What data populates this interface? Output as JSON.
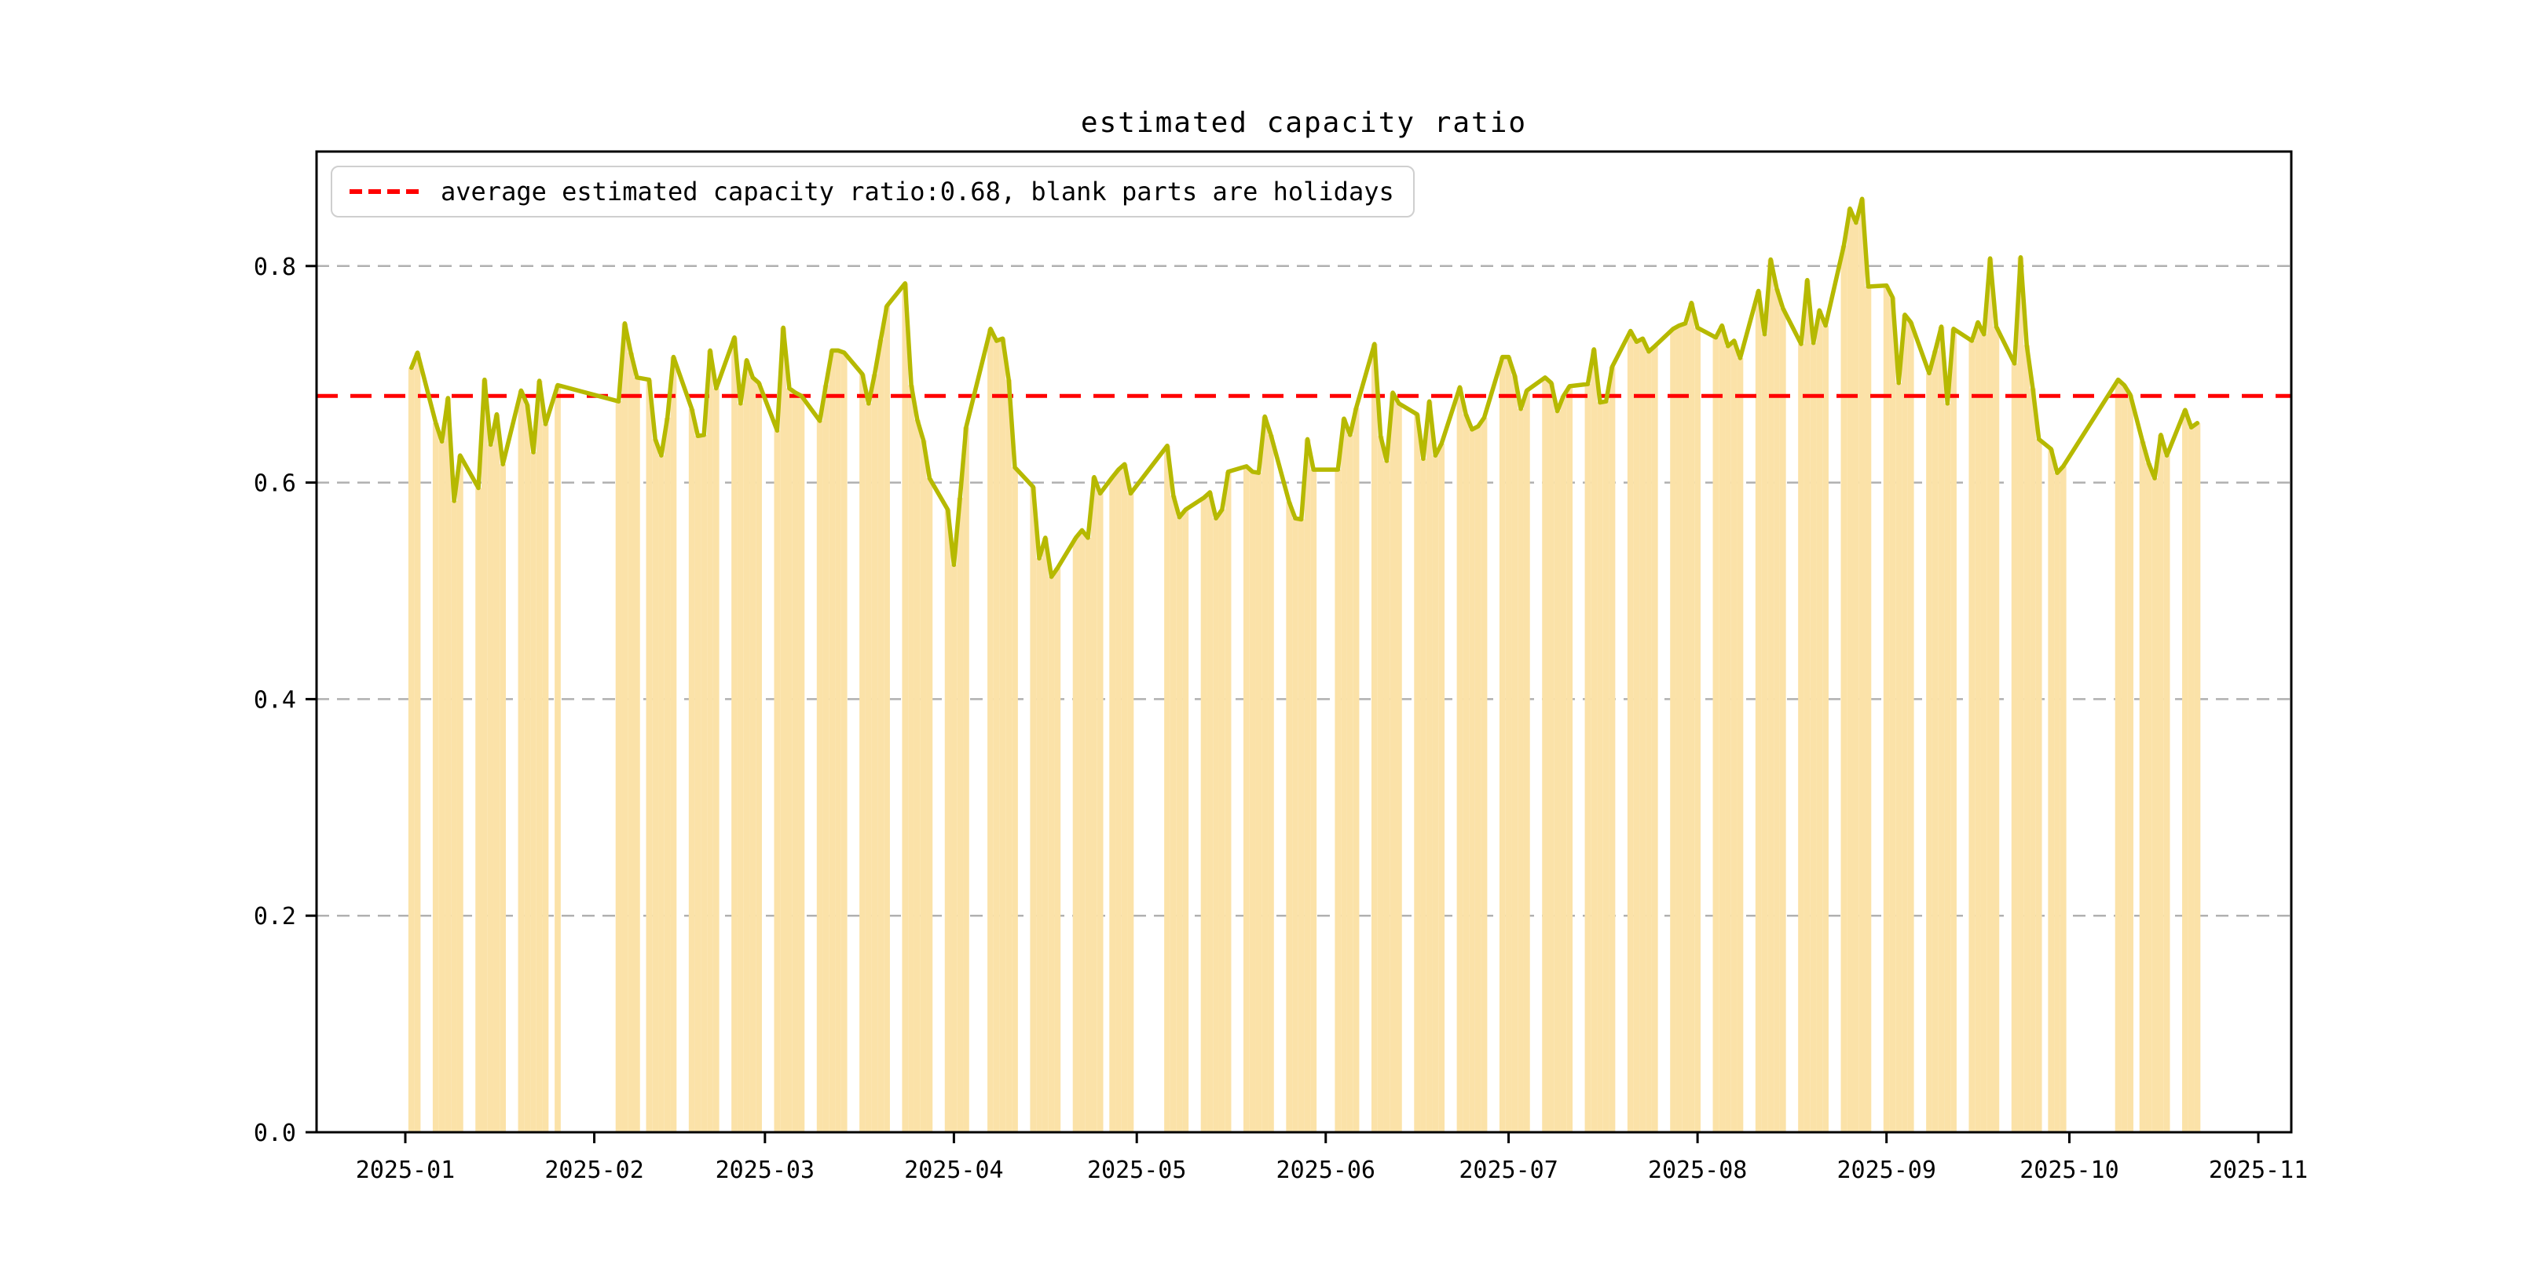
{
  "chart_data": {
    "type": "bar+line",
    "title": "estimated capacity ratio",
    "legend_label": "average estimated capacity ratio:0.68, blank parts are holidays",
    "legend_position": "upper left",
    "grid": "horizontal dashed",
    "xlabel": "",
    "ylabel": "",
    "x_tick_labels": [
      "2025-01",
      "2025-02",
      "2025-03",
      "2025-04",
      "2025-05",
      "2025-06",
      "2025-07",
      "2025-08",
      "2025-09",
      "2025-10",
      "2025-11"
    ],
    "y_ticks": [
      0.0,
      0.2,
      0.4,
      0.6,
      0.8
    ],
    "y_tick_labels": [
      "0.0",
      "0.2",
      "0.4",
      "0.6",
      "0.8"
    ],
    "ylim": [
      0.0,
      0.906
    ],
    "xlim": [
      "2024-12-17",
      "2025-11-06"
    ],
    "average_line": {
      "value": 0.68,
      "style": "dashed"
    },
    "colors": {
      "line": "#b6b900",
      "bar": "#fbe2a8",
      "average": "#ff0000",
      "grid": "#b0b0b0",
      "spine": "#000000",
      "text": "#000000"
    },
    "bar_width_days": 1,
    "dates": [
      "2025-01-02",
      "2025-01-03",
      "2025-01-06",
      "2025-01-07",
      "2025-01-08",
      "2025-01-09",
      "2025-01-10",
      "2025-01-13",
      "2025-01-14",
      "2025-01-15",
      "2025-01-16",
      "2025-01-17",
      "2025-01-20",
      "2025-01-21",
      "2025-01-22",
      "2025-01-23",
      "2025-01-24",
      "2025-01-26",
      "2025-02-05",
      "2025-02-06",
      "2025-02-07",
      "2025-02-08",
      "2025-02-10",
      "2025-02-11",
      "2025-02-12",
      "2025-02-13",
      "2025-02-14",
      "2025-02-17",
      "2025-02-18",
      "2025-02-19",
      "2025-02-20",
      "2025-02-21",
      "2025-02-24",
      "2025-02-25",
      "2025-02-26",
      "2025-02-27",
      "2025-02-28",
      "2025-03-03",
      "2025-03-04",
      "2025-03-05",
      "2025-03-06",
      "2025-03-07",
      "2025-03-10",
      "2025-03-11",
      "2025-03-12",
      "2025-03-13",
      "2025-03-14",
      "2025-03-17",
      "2025-03-18",
      "2025-03-19",
      "2025-03-20",
      "2025-03-21",
      "2025-03-24",
      "2025-03-25",
      "2025-03-26",
      "2025-03-27",
      "2025-03-28",
      "2025-03-31",
      "2025-04-01",
      "2025-04-02",
      "2025-04-03",
      "2025-04-07",
      "2025-04-08",
      "2025-04-09",
      "2025-04-10",
      "2025-04-11",
      "2025-04-14",
      "2025-04-15",
      "2025-04-16",
      "2025-04-17",
      "2025-04-18",
      "2025-04-21",
      "2025-04-22",
      "2025-04-23",
      "2025-04-24",
      "2025-04-25",
      "2025-04-27",
      "2025-04-28",
      "2025-04-29",
      "2025-04-30",
      "2025-05-06",
      "2025-05-07",
      "2025-05-08",
      "2025-05-09",
      "2025-05-12",
      "2025-05-13",
      "2025-05-14",
      "2025-05-15",
      "2025-05-16",
      "2025-05-19",
      "2025-05-20",
      "2025-05-21",
      "2025-05-22",
      "2025-05-23",
      "2025-05-26",
      "2025-05-27",
      "2025-05-28",
      "2025-05-29",
      "2025-05-30",
      "2025-06-03",
      "2025-06-04",
      "2025-06-05",
      "2025-06-06",
      "2025-06-09",
      "2025-06-10",
      "2025-06-11",
      "2025-06-12",
      "2025-06-13",
      "2025-06-16",
      "2025-06-17",
      "2025-06-18",
      "2025-06-19",
      "2025-06-20",
      "2025-06-23",
      "2025-06-24",
      "2025-06-25",
      "2025-06-26",
      "2025-06-27",
      "2025-06-30",
      "2025-07-01",
      "2025-07-02",
      "2025-07-03",
      "2025-07-04",
      "2025-07-07",
      "2025-07-08",
      "2025-07-09",
      "2025-07-10",
      "2025-07-11",
      "2025-07-14",
      "2025-07-15",
      "2025-07-16",
      "2025-07-17",
      "2025-07-18",
      "2025-07-21",
      "2025-07-22",
      "2025-07-23",
      "2025-07-24",
      "2025-07-25",
      "2025-07-28",
      "2025-07-29",
      "2025-07-30",
      "2025-07-31",
      "2025-08-01",
      "2025-08-04",
      "2025-08-05",
      "2025-08-06",
      "2025-08-07",
      "2025-08-08",
      "2025-08-11",
      "2025-08-12",
      "2025-08-13",
      "2025-08-14",
      "2025-08-15",
      "2025-08-18",
      "2025-08-19",
      "2025-08-20",
      "2025-08-21",
      "2025-08-22",
      "2025-08-25",
      "2025-08-26",
      "2025-08-27",
      "2025-08-28",
      "2025-08-29",
      "2025-09-01",
      "2025-09-02",
      "2025-09-03",
      "2025-09-04",
      "2025-09-05",
      "2025-09-08",
      "2025-09-09",
      "2025-09-10",
      "2025-09-11",
      "2025-09-12",
      "2025-09-15",
      "2025-09-16",
      "2025-09-17",
      "2025-09-18",
      "2025-09-19",
      "2025-09-22",
      "2025-09-23",
      "2025-09-24",
      "2025-09-25",
      "2025-09-26",
      "2025-09-28",
      "2025-09-29",
      "2025-09-30",
      "2025-10-09",
      "2025-10-10",
      "2025-10-11",
      "2025-10-13",
      "2025-10-14",
      "2025-10-15",
      "2025-10-16",
      "2025-10-17",
      "2025-10-20",
      "2025-10-21",
      "2025-10-22"
    ],
    "values": [
      0.706,
      0.72,
      0.655,
      0.638,
      0.678,
      0.583,
      0.625,
      0.595,
      0.695,
      0.635,
      0.663,
      0.617,
      0.685,
      0.672,
      0.628,
      0.694,
      0.654,
      0.69,
      0.675,
      0.747,
      0.72,
      0.697,
      0.695,
      0.64,
      0.625,
      0.66,
      0.716,
      0.668,
      0.643,
      0.644,
      0.722,
      0.687,
      0.734,
      0.673,
      0.713,
      0.697,
      0.692,
      0.648,
      0.743,
      0.687,
      0.683,
      0.68,
      0.657,
      0.69,
      0.722,
      0.722,
      0.72,
      0.7,
      0.673,
      0.7,
      0.732,
      0.763,
      0.784,
      0.69,
      0.658,
      0.639,
      0.604,
      0.575,
      0.524,
      0.586,
      0.651,
      0.742,
      0.731,
      0.733,
      0.695,
      0.614,
      0.596,
      0.53,
      0.549,
      0.513,
      0.521,
      0.549,
      0.556,
      0.549,
      0.605,
      0.59,
      0.605,
      0.612,
      0.617,
      0.59,
      0.634,
      0.588,
      0.568,
      0.575,
      0.586,
      0.591,
      0.567,
      0.575,
      0.61,
      0.615,
      0.61,
      0.609,
      0.661,
      0.644,
      0.582,
      0.567,
      0.566,
      0.64,
      0.612,
      0.612,
      0.659,
      0.644,
      0.669,
      0.728,
      0.643,
      0.62,
      0.683,
      0.673,
      0.663,
      0.622,
      0.675,
      0.625,
      0.636,
      0.688,
      0.663,
      0.649,
      0.652,
      0.66,
      0.716,
      0.716,
      0.699,
      0.668,
      0.685,
      0.697,
      0.692,
      0.666,
      0.68,
      0.689,
      0.691,
      0.723,
      0.674,
      0.675,
      0.707,
      0.74,
      0.73,
      0.733,
      0.721,
      0.726,
      0.742,
      0.745,
      0.747,
      0.766,
      0.743,
      0.734,
      0.745,
      0.726,
      0.731,
      0.715,
      0.777,
      0.737,
      0.806,
      0.779,
      0.761,
      0.728,
      0.787,
      0.729,
      0.759,
      0.745,
      0.819,
      0.853,
      0.84,
      0.862,
      0.781,
      0.782,
      0.771,
      0.692,
      0.755,
      0.748,
      0.701,
      0.722,
      0.744,
      0.673,
      0.742,
      0.731,
      0.748,
      0.737,
      0.807,
      0.744,
      0.71,
      0.808,
      0.727,
      0.687,
      0.64,
      0.631,
      0.609,
      0.615,
      0.695,
      0.69,
      0.681,
      0.638,
      0.618,
      0.604,
      0.644,
      0.625,
      0.667,
      0.651,
      0.655
    ]
  }
}
